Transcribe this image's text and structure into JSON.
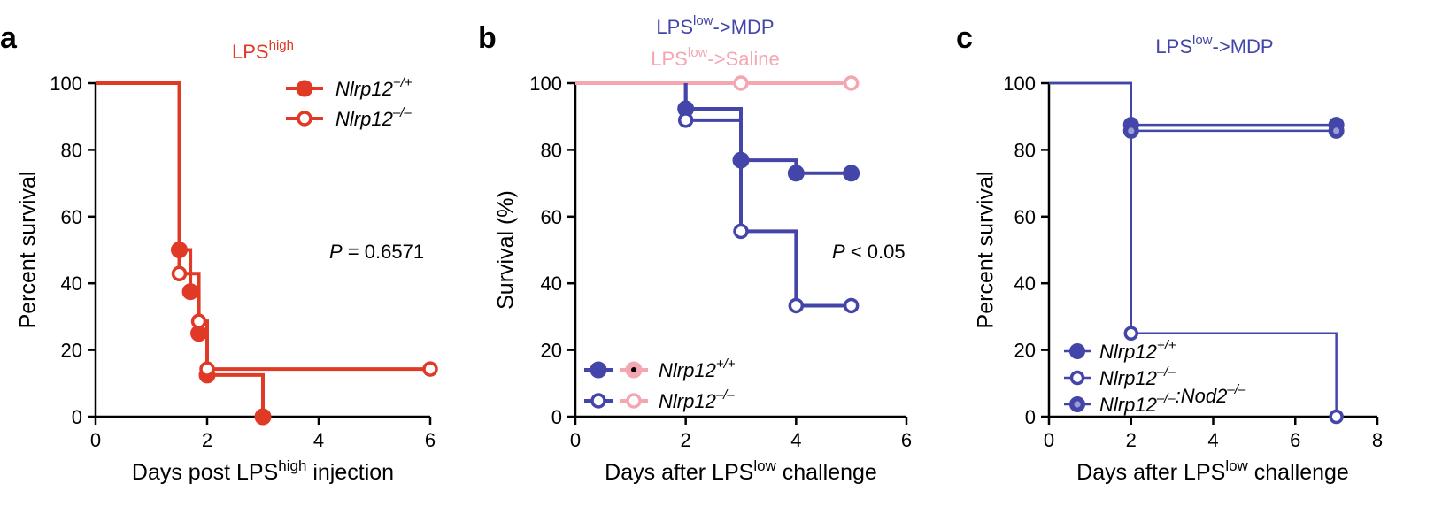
{
  "figure": {
    "panels": [
      {
        "letter": "a"
      },
      {
        "letter": "b"
      },
      {
        "letter": "c"
      }
    ]
  },
  "chart_data": [
    {
      "type": "line",
      "subtype": "kaplan-meier",
      "panel": "a",
      "title": {
        "base": "LPS",
        "sup": "high",
        "color": "#e03a26"
      },
      "xlabel": {
        "pre": "Days post LPS",
        "sup": "high",
        "post": " injection"
      },
      "ylabel": "Percent survival",
      "xlim": [
        0,
        6
      ],
      "ylim": [
        0,
        100
      ],
      "xticks": [
        0,
        2,
        4,
        6
      ],
      "yticks": [
        0,
        20,
        40,
        60,
        80,
        100
      ],
      "annotation": {
        "italic": "P",
        "text": " = 0.6571"
      },
      "legend_position": "top-right",
      "series": [
        {
          "name": {
            "base": "Nlrp12",
            "sup": "+/+"
          },
          "color": "#e03a26",
          "marker": "filled",
          "steps": [
            [
              0,
              100
            ],
            [
              1.5,
              50
            ],
            [
              1.7,
              37.5
            ],
            [
              1.85,
              25
            ],
            [
              2,
              12.5
            ],
            [
              3,
              0
            ]
          ],
          "markers": [
            [
              1.5,
              50
            ],
            [
              1.7,
              37.5
            ],
            [
              1.85,
              25
            ],
            [
              2,
              12.5
            ],
            [
              3,
              0
            ]
          ]
        },
        {
          "name": {
            "base": "Nlrp12",
            "sup": "–/–"
          },
          "color": "#e03a26",
          "marker": "open",
          "steps": [
            [
              0,
              100
            ],
            [
              1.5,
              42.9
            ],
            [
              1.85,
              28.6
            ],
            [
              2,
              14.3
            ],
            [
              6,
              14.3
            ]
          ],
          "markers": [
            [
              1.5,
              42.9
            ],
            [
              1.85,
              28.6
            ],
            [
              2,
              14.3
            ],
            [
              6,
              14.3
            ]
          ]
        }
      ]
    },
    {
      "type": "line",
      "subtype": "kaplan-meier",
      "panel": "b",
      "titles": [
        {
          "base": "LPS",
          "sup": "low",
          "post": "->MDP",
          "color": "#4346a8"
        },
        {
          "base": "LPS",
          "sup": "low",
          "post": "->Saline",
          "color": "#f4a7b1"
        }
      ],
      "xlabel": {
        "pre": "Days after LPS",
        "sup": "low",
        "post": " challenge"
      },
      "ylabel": "Survival (%)",
      "xlim": [
        0,
        6
      ],
      "ylim": [
        0,
        100
      ],
      "xticks": [
        0,
        2,
        4,
        6
      ],
      "yticks": [
        0,
        20,
        40,
        60,
        80,
        100
      ],
      "annotation": {
        "italic": "P",
        "text": " < 0.05"
      },
      "legend_position": "bottom-left",
      "legend": [
        {
          "name": {
            "base": "Nlrp12",
            "sup": "+/+"
          },
          "colors": [
            "#4346a8",
            "#f4a7b1"
          ],
          "marker": "filled"
        },
        {
          "name": {
            "base": "Nlrp12",
            "sup": "–/–"
          },
          "colors": [
            "#4346a8",
            "#f4a7b1"
          ],
          "marker": "open"
        }
      ],
      "series": [
        {
          "name": "Saline Nlrp12 +/+",
          "color": "#f4a7b1",
          "marker": "filled",
          "steps": [
            [
              0,
              100
            ],
            [
              5,
              100
            ]
          ],
          "markers": []
        },
        {
          "name": "Saline Nlrp12 -/-",
          "color": "#f4a7b1",
          "marker": "open",
          "steps": [
            [
              0,
              100
            ],
            [
              5,
              100
            ]
          ],
          "markers": [
            [
              3,
              100
            ],
            [
              5,
              100
            ]
          ]
        },
        {
          "name": "MDP Nlrp12 +/+",
          "color": "#4346a8",
          "marker": "filled",
          "steps": [
            [
              2,
              100
            ],
            [
              2,
              92.3
            ],
            [
              3,
              76.9
            ],
            [
              4,
              73
            ],
            [
              5,
              73
            ]
          ],
          "markers": [
            [
              2,
              92.3
            ],
            [
              3,
              76.9
            ],
            [
              4,
              73
            ],
            [
              5,
              73
            ]
          ]
        },
        {
          "name": "MDP Nlrp12 -/-",
          "color": "#4346a8",
          "marker": "open",
          "steps": [
            [
              2,
              100
            ],
            [
              2,
              88.9
            ],
            [
              3,
              55.6
            ],
            [
              4,
              33.3
            ],
            [
              5,
              33.3
            ]
          ],
          "markers": [
            [
              2,
              88.9
            ],
            [
              3,
              55.6
            ],
            [
              4,
              33.3
            ],
            [
              5,
              33.3
            ]
          ]
        }
      ]
    },
    {
      "type": "line",
      "subtype": "kaplan-meier",
      "panel": "c",
      "title": {
        "base": "LPS",
        "sup": "low",
        "post": "->MDP",
        "color": "#4346a8"
      },
      "xlabel": {
        "pre": "Days after LPS",
        "sup": "low",
        "post": " challenge"
      },
      "ylabel": "Percent survival",
      "xlim": [
        0,
        8
      ],
      "ylim": [
        0,
        100
      ],
      "xticks": [
        0,
        2,
        4,
        6,
        8
      ],
      "yticks": [
        0,
        20,
        40,
        60,
        80,
        100
      ],
      "legend_position": "bottom-left",
      "series": [
        {
          "name": {
            "parts": [
              {
                "base": "Nlrp12",
                "sup": "+/+"
              }
            ]
          },
          "color": "#4346a8",
          "marker": "filled",
          "steps": [
            [
              0,
              100
            ],
            [
              2,
              87.5
            ],
            [
              7,
              87.5
            ]
          ],
          "markers": [
            [
              2,
              87.5
            ],
            [
              7,
              87.5
            ]
          ]
        },
        {
          "name": {
            "parts": [
              {
                "base": "Nlrp12",
                "sup": "–/–"
              }
            ]
          },
          "color": "#4346a8",
          "marker": "open",
          "steps": [
            [
              0,
              100
            ],
            [
              2,
              25
            ],
            [
              7,
              0
            ]
          ],
          "markers": [
            [
              2,
              25
            ],
            [
              7,
              0
            ]
          ]
        },
        {
          "name": {
            "parts": [
              {
                "base": "Nlrp12",
                "sup": "–/–"
              },
              {
                "base": ":Nod2",
                "sup": "–/–"
              }
            ]
          },
          "color": "#4346a8",
          "marker": "dot",
          "steps": [
            [
              0,
              100
            ],
            [
              2,
              85.7
            ],
            [
              7,
              85.7
            ]
          ],
          "markers": [
            [
              2,
              85.7
            ],
            [
              7,
              85.7
            ]
          ]
        }
      ]
    }
  ]
}
